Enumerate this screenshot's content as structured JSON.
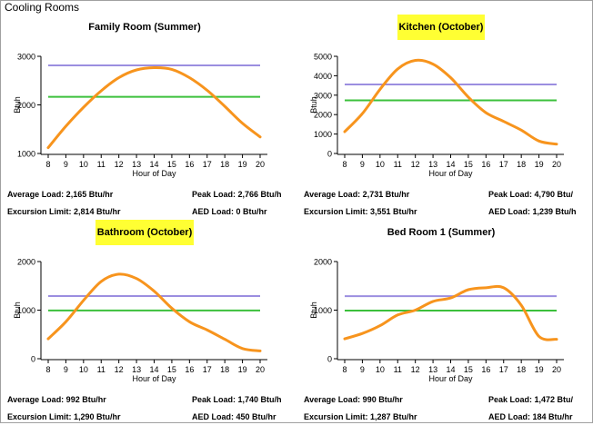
{
  "page": {
    "title": "Cooling Rooms"
  },
  "colors": {
    "load": "#f7941d",
    "excursion": "#9b8ee0",
    "average": "#3cc03c",
    "highlight": "#ffff33",
    "axis": "#000000"
  },
  "chart_data": [
    {
      "type": "line",
      "title": "Family Room (Summer)",
      "title_highlight": false,
      "xlabel": "Hour of Day",
      "ylabel": "Btuh",
      "x": [
        8,
        9,
        10,
        11,
        12,
        13,
        14,
        15,
        16,
        17,
        18,
        19,
        20
      ],
      "xticks": [
        "8",
        "9",
        "10",
        "11",
        "12",
        "13",
        "14",
        "15",
        "16",
        "17",
        "18",
        "19",
        "20"
      ],
      "yticks": [
        "1000",
        "2000",
        "3000"
      ],
      "ylim": [
        1000,
        3000
      ],
      "series": [
        {
          "values": [
            1120,
            1560,
            1950,
            2290,
            2560,
            2720,
            2766,
            2730,
            2560,
            2300,
            1970,
            1620,
            1340
          ]
        }
      ],
      "excursion_limit": 2814,
      "average_load": 2165,
      "stats": {
        "average": "Average Load: 2,165 Btu/hr",
        "peak": "Peak Load: 2,766 Btu/h",
        "excursion": "Excursion Limit: 2,814 Btu/hr",
        "aed": "AED Load: 0 Btu/hr"
      }
    },
    {
      "type": "line",
      "title": "Kitchen (October)",
      "title_highlight": true,
      "xlabel": "Hour of Day",
      "ylabel": "Btuh",
      "x": [
        8,
        9,
        10,
        11,
        12,
        13,
        14,
        15,
        16,
        17,
        18,
        19,
        20
      ],
      "xticks": [
        "8",
        "9",
        "10",
        "11",
        "12",
        "13",
        "14",
        "15",
        "16",
        "17",
        "18",
        "19",
        "20"
      ],
      "yticks": [
        "0",
        "1000",
        "2000",
        "3000",
        "4000",
        "5000"
      ],
      "ylim": [
        0,
        5000
      ],
      "series": [
        {
          "values": [
            1120,
            2050,
            3300,
            4350,
            4790,
            4600,
            3900,
            2900,
            2100,
            1650,
            1200,
            640,
            480
          ]
        }
      ],
      "excursion_limit": 3551,
      "average_load": 2731,
      "stats": {
        "average": "Average Load: 2,731 Btu/hr",
        "peak": "Peak Load: 4,790 Btu/",
        "excursion": "Excursion Limit: 3,551 Btu/hr",
        "aed": "AED Load: 1,239 Btu/h"
      }
    },
    {
      "type": "line",
      "title": "Bathroom (October)",
      "title_highlight": true,
      "xlabel": "Hour of Day",
      "ylabel": "Btuh",
      "x": [
        8,
        9,
        10,
        11,
        12,
        13,
        14,
        15,
        16,
        17,
        18,
        19,
        20
      ],
      "xticks": [
        "8",
        "9",
        "10",
        "11",
        "12",
        "13",
        "14",
        "15",
        "16",
        "17",
        "18",
        "19",
        "20"
      ],
      "yticks": [
        "0",
        "1000",
        "2000"
      ],
      "ylim": [
        0,
        2000
      ],
      "series": [
        {
          "values": [
            410,
            760,
            1200,
            1590,
            1740,
            1650,
            1390,
            1040,
            760,
            590,
            400,
            210,
            160
          ]
        }
      ],
      "excursion_limit": 1290,
      "average_load": 992,
      "stats": {
        "average": "Average Load: 992 Btu/hr",
        "peak": "Peak Load: 1,740 Btu/h",
        "excursion": "Excursion Limit: 1,290 Btu/hr",
        "aed": "AED Load: 450 Btu/hr"
      }
    },
    {
      "type": "line",
      "title": "Bed Room 1 (Summer)",
      "title_highlight": false,
      "xlabel": "Hour of Day",
      "ylabel": "Btuh",
      "x": [
        8,
        9,
        10,
        11,
        12,
        13,
        14,
        15,
        16,
        17,
        18,
        19,
        20
      ],
      "xticks": [
        "8",
        "9",
        "10",
        "11",
        "12",
        "13",
        "14",
        "15",
        "16",
        "17",
        "18",
        "19",
        "20"
      ],
      "yticks": [
        "0",
        "1000",
        "2000"
      ],
      "ylim": [
        0,
        2000
      ],
      "series": [
        {
          "values": [
            410,
            520,
            680,
            900,
            1000,
            1180,
            1250,
            1420,
            1460,
            1460,
            1100,
            460,
            400
          ]
        }
      ],
      "excursion_limit": 1287,
      "average_load": 990,
      "stats": {
        "average": "Average Load: 990 Btu/hr",
        "peak": "Peak Load: 1,472 Btu/",
        "excursion": "Excursion Limit: 1,287 Btu/hr",
        "aed": "AED Load: 184 Btu/hr"
      }
    }
  ]
}
